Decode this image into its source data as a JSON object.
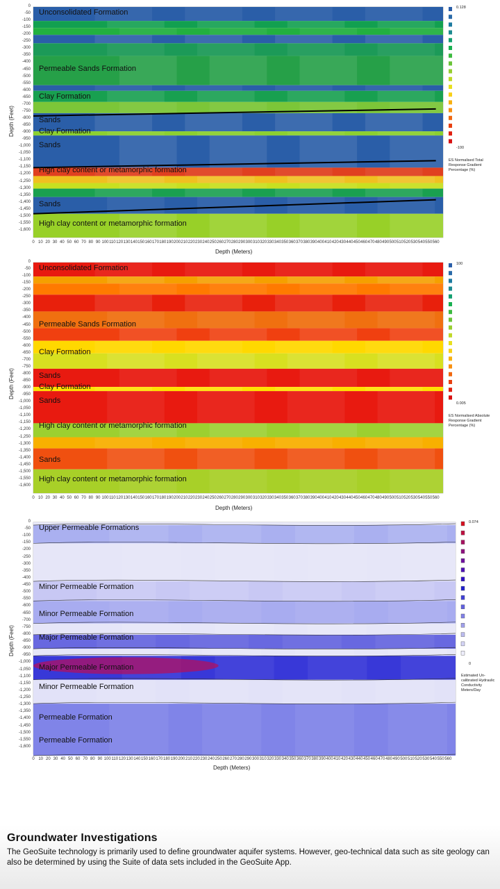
{
  "footer": {
    "title": "Groundwater  Investigations",
    "body": "The GeoSuite technology is primarily used to define groundwater aquifer systems. However, geo-technical data such as site geology can also be determined by using the Suite of data sets included in the GeoSuite App."
  },
  "chart_data": [
    {
      "type": "heatmap",
      "title": "",
      "xlabel": "Depth (Meters)",
      "ylabel": "Depth (Feet)",
      "x_ticks": [
        0,
        10,
        20,
        30,
        40,
        50,
        60,
        70,
        80,
        90,
        100,
        110,
        120,
        130,
        140,
        150,
        160,
        170,
        180,
        190,
        200,
        210,
        220,
        230,
        240,
        250,
        260,
        270,
        280,
        290,
        300,
        310,
        320,
        330,
        340,
        350,
        360,
        370,
        380,
        390,
        400,
        410,
        420,
        430,
        440,
        450,
        460,
        470,
        480,
        490,
        500,
        510,
        520,
        530,
        540,
        550,
        560
      ],
      "y_ticks": [
        "0",
        "-50",
        "-100",
        "-150",
        "-200",
        "-250",
        "-300",
        "-350",
        "-400",
        "-450",
        "-500",
        "-550",
        "-600",
        "-650",
        "-700",
        "-750",
        "-800",
        "-850",
        "-900",
        "-950",
        "-1,000",
        "-1,050",
        "-1,100",
        "-1,150",
        "-1,200",
        "-1,250",
        "-1,300",
        "-1,350",
        "-1,400",
        "-1,450",
        "-1,500",
        "-1,550",
        "-1,600"
      ],
      "legend": {
        "max_label": "0.128",
        "min_label": "-100",
        "title": "ES Normalised Total Response Gradient Percentage (%)"
      },
      "annotations": [
        {
          "label": "Unconsolidated Formation",
          "depth_ft": -50
        },
        {
          "label": "Permeable Sands Formation",
          "depth_ft": -450
        },
        {
          "label": "Clay Formation",
          "depth_ft": -650
        },
        {
          "label": "Sands",
          "depth_ft": -820
        },
        {
          "label": "Clay Formation",
          "depth_ft": -900
        },
        {
          "label": "Sands",
          "depth_ft": -1000
        },
        {
          "label": "High clay content or metamorphic formation",
          "depth_ft": -1180
        },
        {
          "label": "Sands",
          "depth_ft": -1420
        },
        {
          "label": "High clay content or metamorphic formation",
          "depth_ft": -1560
        }
      ],
      "boundary_lines_ft": [
        {
          "x": [
            0,
            560
          ],
          "y": [
            -780,
            -730
          ]
        },
        {
          "x": [
            0,
            560
          ],
          "y": [
            -1150,
            -1100
          ]
        },
        {
          "x": [
            0,
            560
          ],
          "y": [
            -1480,
            -1380
          ]
        }
      ],
      "bands": [
        {
          "from": 0,
          "to": -100,
          "color": "#2a5ea8"
        },
        {
          "from": -100,
          "to": -150,
          "color": "#12a050"
        },
        {
          "from": -150,
          "to": -200,
          "color": "#22b040"
        },
        {
          "from": -200,
          "to": -260,
          "color": "#2a5ea8"
        },
        {
          "from": -260,
          "to": -350,
          "color": "#1c9a58"
        },
        {
          "from": -350,
          "to": -560,
          "color": "#26a048"
        },
        {
          "from": -560,
          "to": -600,
          "color": "#2a5ea8"
        },
        {
          "from": -600,
          "to": -680,
          "color": "#18a050"
        },
        {
          "from": -680,
          "to": -760,
          "color": "#7cc638"
        },
        {
          "from": -760,
          "to": -890,
          "color": "#2a5ea8"
        },
        {
          "from": -890,
          "to": -920,
          "color": "#8cd030"
        },
        {
          "from": -920,
          "to": -1150,
          "color": "#2a5ea8"
        },
        {
          "from": -1150,
          "to": -1210,
          "color": "#e04020"
        },
        {
          "from": -1210,
          "to": -1260,
          "color": "#f0c020"
        },
        {
          "from": -1260,
          "to": -1300,
          "color": "#c8e020"
        },
        {
          "from": -1300,
          "to": -1360,
          "color": "#1aa050"
        },
        {
          "from": -1360,
          "to": -1480,
          "color": "#2a5ea8"
        },
        {
          "from": -1480,
          "to": -1650,
          "color": "#98d028"
        }
      ]
    },
    {
      "type": "heatmap",
      "title": "",
      "xlabel": "Depth (Meters)",
      "ylabel": "Depth (Feet)",
      "x_ticks": [
        0,
        10,
        20,
        30,
        40,
        50,
        60,
        70,
        80,
        90,
        100,
        110,
        120,
        130,
        140,
        150,
        160,
        170,
        180,
        190,
        200,
        210,
        220,
        230,
        240,
        250,
        260,
        270,
        280,
        290,
        300,
        310,
        320,
        330,
        340,
        350,
        360,
        370,
        380,
        390,
        400,
        410,
        420,
        430,
        440,
        450,
        460,
        470,
        480,
        490,
        500,
        510,
        520,
        530,
        540,
        550,
        560
      ],
      "y_ticks": [
        "0",
        "-50",
        "-100",
        "-150",
        "-200",
        "-250",
        "-300",
        "-350",
        "-400",
        "-450",
        "-500",
        "-550",
        "-600",
        "-650",
        "-700",
        "-750",
        "-800",
        "-850",
        "-900",
        "-950",
        "-1,000",
        "-1,050",
        "-1,100",
        "-1,150",
        "-1,200",
        "-1,250",
        "-1,300",
        "-1,350",
        "-1,400",
        "-1,450",
        "-1,500",
        "-1,550",
        "-1,600"
      ],
      "legend": {
        "max_label": "100",
        "min_label": "0.005",
        "title": "ES Normalised Absolute Response Gradient Percentage (%)"
      },
      "annotations": [
        {
          "label": "Unconsolidated Formation",
          "depth_ft": -50
        },
        {
          "label": "Permeable Sands Formation",
          "depth_ft": -450
        },
        {
          "label": "Clay Formation",
          "depth_ft": -650
        },
        {
          "label": "Sands",
          "depth_ft": -820
        },
        {
          "label": "Clay Formation",
          "depth_ft": -900
        },
        {
          "label": "Sands",
          "depth_ft": -1000
        },
        {
          "label": "High clay content or metamorphic formation",
          "depth_ft": -1180
        },
        {
          "label": "Sands",
          "depth_ft": -1420
        },
        {
          "label": "High clay content or metamorphic formation",
          "depth_ft": -1560
        }
      ],
      "bands": [
        {
          "from": 0,
          "to": -100,
          "color": "#e81a10"
        },
        {
          "from": -100,
          "to": -150,
          "color": "#f5a000"
        },
        {
          "from": -150,
          "to": -230,
          "color": "#ff7a00"
        },
        {
          "from": -230,
          "to": -350,
          "color": "#e8200c"
        },
        {
          "from": -350,
          "to": -470,
          "color": "#f07010"
        },
        {
          "from": -470,
          "to": -560,
          "color": "#f04010"
        },
        {
          "from": -560,
          "to": -650,
          "color": "#ffd800"
        },
        {
          "from": -650,
          "to": -760,
          "color": "#d8e020"
        },
        {
          "from": -760,
          "to": -890,
          "color": "#e81a10"
        },
        {
          "from": -890,
          "to": -920,
          "color": "#ffe000"
        },
        {
          "from": -920,
          "to": -1150,
          "color": "#e81a10"
        },
        {
          "from": -1150,
          "to": -1250,
          "color": "#9cd030"
        },
        {
          "from": -1250,
          "to": -1330,
          "color": "#f8b000"
        },
        {
          "from": -1330,
          "to": -1480,
          "color": "#f05010"
        },
        {
          "from": -1480,
          "to": -1650,
          "color": "#a8d028"
        }
      ]
    },
    {
      "type": "heatmap",
      "title": "",
      "xlabel": "Depth (Meters)",
      "ylabel": "Depth (Feet)",
      "x_ticks": [
        0,
        10,
        20,
        30,
        40,
        50,
        60,
        70,
        80,
        90,
        100,
        110,
        120,
        130,
        140,
        150,
        160,
        170,
        180,
        190,
        200,
        210,
        220,
        230,
        240,
        250,
        260,
        270,
        280,
        290,
        300,
        310,
        320,
        330,
        340,
        350,
        360,
        370,
        380,
        390,
        400,
        410,
        420,
        430,
        440,
        450,
        460,
        470,
        480,
        490,
        500,
        510,
        520,
        530,
        540,
        550,
        560
      ],
      "y_ticks": [
        "0",
        "-50",
        "-100",
        "-150",
        "-200",
        "-250",
        "-300",
        "-350",
        "-400",
        "-450",
        "-500",
        "-550",
        "-600",
        "-650",
        "-700",
        "-750",
        "-800",
        "-850",
        "-900",
        "-950",
        "-1,000",
        "-1,050",
        "-1,100",
        "-1,150",
        "-1,200",
        "-1,250",
        "-1,300",
        "-1,350",
        "-1,400",
        "-1,450",
        "-1,500",
        "-1,550",
        "-1,600"
      ],
      "legend": {
        "max_label": "0.074",
        "min_label": "0",
        "title": "Estimated Un-calibrated Hydraulic Conductivity Meters/Day"
      },
      "annotations": [
        {
          "label": "Upper Permeable Formations",
          "depth_ft": -50
        },
        {
          "label": "Minor Permeable Formation",
          "depth_ft": -470
        },
        {
          "label": "Minor Permeable Formation",
          "depth_ft": -660
        },
        {
          "label": "Major Permeable Formation",
          "depth_ft": -830
        },
        {
          "label": "Major Permeable Formation",
          "depth_ft": -1040
        },
        {
          "label": "Minor Permeable Formation",
          "depth_ft": -1180
        },
        {
          "label": "Permeable Formation",
          "depth_ft": -1400
        },
        {
          "label": "Permeable Formation",
          "depth_ft": -1560
        }
      ],
      "bands": [
        {
          "from": 0,
          "to": -20,
          "color": "#e8e8f8"
        },
        {
          "from": -20,
          "to": -150,
          "color": "#aab0f0"
        },
        {
          "from": -150,
          "to": -420,
          "color": "#e6e6f8"
        },
        {
          "from": -420,
          "to": -560,
          "color": "#c8c8f4"
        },
        {
          "from": -560,
          "to": -720,
          "color": "#a8acf0"
        },
        {
          "from": -720,
          "to": -800,
          "color": "#e6e6f8"
        },
        {
          "from": -800,
          "to": -900,
          "color": "#6868e0"
        },
        {
          "from": -900,
          "to": -950,
          "color": "#e6e6f8"
        },
        {
          "from": -950,
          "to": -1120,
          "color": "#3838d8"
        },
        {
          "from": -1120,
          "to": -1290,
          "color": "#e2e2f8"
        },
        {
          "from": -1290,
          "to": -1660,
          "color": "#8084e8"
        }
      ],
      "hotspot": {
        "x_m": [
          0,
          250
        ],
        "depth_ft": [
          -960,
          -1080
        ],
        "color": "#b01060"
      }
    }
  ],
  "legend_colors": {
    "panel1": [
      "#2a5ea8",
      "#2a6aa8",
      "#1c7aa0",
      "#1c8a90",
      "#14a070",
      "#18b050",
      "#3cba40",
      "#6ac438",
      "#96ce30",
      "#c0d828",
      "#e8e020",
      "#f8d018",
      "#f8b010",
      "#f89010",
      "#f06810",
      "#e84010",
      "#e02010",
      "#d81010"
    ],
    "panel2": [
      "#2a5ea8",
      "#2a6aa8",
      "#1c7aa0",
      "#1c8a90",
      "#14a070",
      "#18b050",
      "#3cba40",
      "#6ac438",
      "#96ce30",
      "#c0d828",
      "#e8e020",
      "#f8d018",
      "#f8b010",
      "#f89010",
      "#f06810",
      "#e84010",
      "#e02010",
      "#d81010"
    ],
    "panel3": [
      "#d81020",
      "#c01040",
      "#a81060",
      "#901080",
      "#7010a0",
      "#5010b8",
      "#3010c8",
      "#2020d0",
      "#4040d8",
      "#6060e0",
      "#8080e8",
      "#a0a0ec",
      "#bcbcf0",
      "#d4d4f6",
      "#eeeefc"
    ]
  }
}
